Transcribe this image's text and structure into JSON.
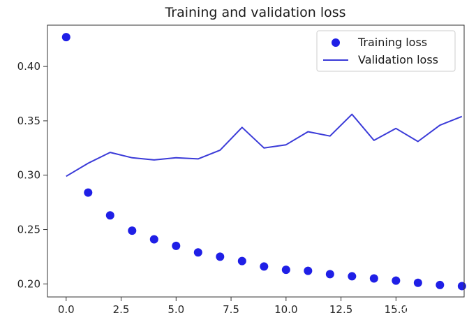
{
  "chart_data": {
    "type": "line",
    "title": "Training and validation loss",
    "xlabel": "",
    "ylabel": "",
    "xlim": [
      -0.85,
      18.1
    ],
    "ylim": [
      0.188,
      0.438
    ],
    "x_ticks": [
      0.0,
      2.5,
      5.0,
      7.5,
      10.0,
      12.5,
      15.0
    ],
    "x_tick_labels": [
      "0.0",
      "2.5",
      "5.0",
      "7.5",
      "10.0",
      "12.5",
      "15.0"
    ],
    "y_ticks": [
      0.2,
      0.25,
      0.3,
      0.35,
      0.4
    ],
    "y_tick_labels": [
      "0.20",
      "0.25",
      "0.30",
      "0.35",
      "0.40"
    ],
    "grid": false,
    "legend_position": "top-right",
    "series": [
      {
        "name": "Training loss",
        "style": "markers",
        "color": "#1f1fe6",
        "x": [
          0,
          1,
          2,
          3,
          4,
          5,
          6,
          7,
          8,
          9,
          10,
          11,
          12,
          13,
          14,
          15,
          16,
          17,
          18
        ],
        "values": [
          0.427,
          0.284,
          0.263,
          0.249,
          0.241,
          0.235,
          0.229,
          0.225,
          0.221,
          0.216,
          0.213,
          0.212,
          0.209,
          0.207,
          0.205,
          0.203,
          0.201,
          0.199,
          0.198
        ]
      },
      {
        "name": "Validation loss",
        "style": "line",
        "color": "#3a3ad8",
        "x": [
          0,
          1,
          2,
          3,
          4,
          5,
          6,
          7,
          8,
          9,
          10,
          11,
          12,
          13,
          14,
          15,
          16,
          17,
          18
        ],
        "values": [
          0.299,
          0.311,
          0.321,
          0.316,
          0.314,
          0.316,
          0.315,
          0.323,
          0.344,
          0.325,
          0.328,
          0.34,
          0.336,
          0.356,
          0.332,
          0.343,
          0.331,
          0.346,
          0.354
        ]
      }
    ]
  },
  "watermark": {
    "text": "神机喵算",
    "icon": "wechat-logo-icon"
  }
}
